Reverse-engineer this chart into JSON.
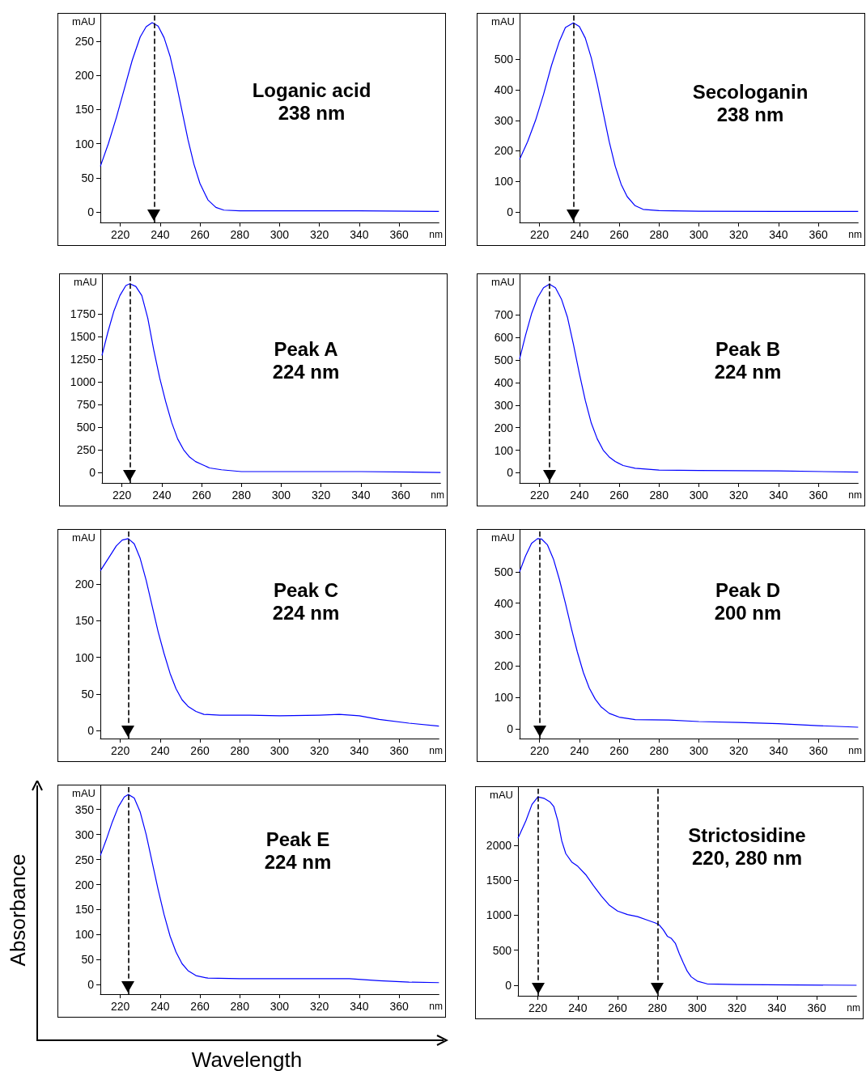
{
  "chart_data": [
    {
      "type": "line",
      "title": "Loganic acid",
      "subtitle": "238 nm",
      "xlabel": "nm",
      "ylabel": "mAU",
      "xlim": [
        210,
        380
      ],
      "xticks": [
        220,
        240,
        260,
        280,
        300,
        320,
        340,
        360
      ],
      "ylim": [
        -15,
        290
      ],
      "yticks": [
        0,
        50,
        100,
        150,
        200,
        250
      ],
      "marker": "none",
      "series": [
        {
          "color": "#0000ff",
          "x": [
            210,
            214,
            218,
            222,
            226,
            230,
            233,
            236,
            239,
            242,
            245,
            248,
            251,
            254,
            257,
            260,
            264,
            268,
            272,
            280,
            300,
            340,
            380
          ],
          "values": [
            67,
            100,
            138,
            180,
            222,
            256,
            271,
            277,
            272,
            255,
            228,
            190,
            148,
            106,
            70,
            42,
            18,
            7,
            3,
            2,
            2,
            2,
            1
          ]
        }
      ],
      "ref_lines": [
        {
          "axis": "x",
          "value": 237,
          "line_style": "dashed",
          "color": "#000000"
        }
      ]
    },
    {
      "type": "line",
      "title": "Secologanin",
      "subtitle": "238 nm",
      "xlabel": "nm",
      "ylabel": "mAU",
      "xlim": [
        210,
        380
      ],
      "xticks": [
        220,
        240,
        260,
        280,
        300,
        320,
        340,
        360
      ],
      "ylim": [
        -35,
        650
      ],
      "yticks": [
        0,
        100,
        200,
        300,
        400,
        500
      ],
      "marker": "none",
      "series": [
        {
          "color": "#0000ff",
          "x": [
            210,
            214,
            218,
            222,
            226,
            230,
            233,
            237,
            240,
            243,
            246,
            249,
            252,
            255,
            258,
            261,
            264,
            268,
            272,
            280,
            300,
            340,
            380
          ],
          "values": [
            172,
            230,
            300,
            385,
            480,
            560,
            605,
            620,
            608,
            570,
            505,
            420,
            325,
            230,
            150,
            90,
            50,
            20,
            8,
            4,
            2,
            1,
            1
          ]
        }
      ],
      "ref_lines": [
        {
          "axis": "x",
          "value": 237,
          "line_style": "dashed",
          "color": "#000000"
        }
      ]
    },
    {
      "type": "line",
      "title": "Peak A",
      "subtitle": "224 nm",
      "xlabel": "nm",
      "ylabel": "mAU",
      "xlim": [
        210,
        380
      ],
      "xticks": [
        220,
        240,
        260,
        280,
        300,
        320,
        340,
        360
      ],
      "ylim": [
        -115,
        2185
      ],
      "yticks": [
        0,
        250,
        500,
        750,
        1000,
        1250,
        1500,
        1750
      ],
      "marker": "none",
      "series": [
        {
          "color": "#0000ff",
          "x": [
            210,
            213,
            216,
            219,
            222,
            224,
            227,
            230,
            233,
            236,
            239,
            242,
            245,
            248,
            251,
            254,
            257,
            260,
            264,
            270,
            280,
            300,
            340,
            380
          ],
          "values": [
            1290,
            1550,
            1780,
            1950,
            2060,
            2080,
            2050,
            1950,
            1700,
            1350,
            1040,
            780,
            550,
            370,
            250,
            170,
            120,
            90,
            50,
            30,
            10,
            10,
            10,
            0
          ]
        }
      ],
      "ref_lines": [
        {
          "axis": "x",
          "value": 224,
          "line_style": "dashed",
          "color": "#000000"
        }
      ]
    },
    {
      "type": "line",
      "title": "Peak B",
      "subtitle": "224 nm",
      "xlabel": "nm",
      "ylabel": "mAU",
      "xlim": [
        210,
        380
      ],
      "xticks": [
        220,
        240,
        260,
        280,
        300,
        320,
        340,
        360
      ],
      "ylim": [
        -45,
        880
      ],
      "yticks": [
        0,
        100,
        200,
        300,
        400,
        500,
        600,
        700
      ],
      "marker": "none",
      "series": [
        {
          "color": "#0000ff",
          "x": [
            210,
            213,
            216,
            219,
            222,
            225,
            228,
            231,
            234,
            237,
            240,
            243,
            246,
            249,
            252,
            255,
            258,
            262,
            268,
            280,
            300,
            340,
            380
          ],
          "values": [
            505,
            610,
            705,
            775,
            820,
            836,
            820,
            770,
            690,
            570,
            440,
            320,
            220,
            150,
            100,
            70,
            50,
            32,
            20,
            12,
            10,
            8,
            3
          ]
        }
      ],
      "ref_lines": [
        {
          "axis": "x",
          "value": 225,
          "line_style": "dashed",
          "color": "#000000"
        }
      ]
    },
    {
      "type": "line",
      "title": "Peak C",
      "subtitle": "224 nm",
      "xlabel": "nm",
      "ylabel": "mAU",
      "xlim": [
        210,
        380
      ],
      "xticks": [
        220,
        240,
        260,
        280,
        300,
        320,
        340,
        360
      ],
      "ylim": [
        -11,
        274
      ],
      "yticks": [
        0,
        50,
        100,
        150,
        200
      ],
      "marker": "none",
      "series": [
        {
          "color": "#0000ff",
          "x": [
            210,
            214,
            218,
            221,
            224,
            227,
            230,
            233,
            236,
            239,
            242,
            245,
            248,
            251,
            254,
            258,
            262,
            270,
            285,
            300,
            320,
            330,
            340,
            350,
            365,
            380
          ],
          "values": [
            218,
            235,
            252,
            260,
            262,
            255,
            235,
            205,
            170,
            135,
            105,
            78,
            57,
            42,
            33,
            26,
            22,
            21,
            21,
            20,
            21,
            22,
            20,
            15,
            10,
            6
          ]
        }
      ],
      "ref_lines": [
        {
          "axis": "x",
          "value": 224,
          "line_style": "dashed",
          "color": "#000000"
        }
      ]
    },
    {
      "type": "line",
      "title": "Peak D",
      "subtitle": "200 nm",
      "xlabel": "nm",
      "ylabel": "mAU",
      "xlim": [
        210,
        380
      ],
      "xticks": [
        220,
        240,
        260,
        280,
        300,
        320,
        340,
        360
      ],
      "ylim": [
        -30,
        633
      ],
      "yticks": [
        0,
        100,
        200,
        300,
        400,
        500
      ],
      "marker": "none",
      "series": [
        {
          "color": "#0000ff",
          "x": [
            210,
            213,
            216,
            219,
            221,
            224,
            227,
            230,
            233,
            236,
            239,
            242,
            245,
            248,
            251,
            255,
            260,
            268,
            285,
            300,
            320,
            340,
            360,
            380
          ],
          "values": [
            500,
            550,
            590,
            605,
            604,
            585,
            540,
            475,
            400,
            320,
            245,
            180,
            130,
            95,
            70,
            50,
            38,
            30,
            29,
            24,
            21,
            17,
            11,
            6
          ]
        }
      ],
      "ref_lines": [
        {
          "axis": "x",
          "value": 220,
          "line_style": "dashed",
          "color": "#000000"
        }
      ]
    },
    {
      "type": "line",
      "title": "Peak E",
      "subtitle": "224 nm",
      "xlabel": "nm",
      "ylabel": "mAU",
      "xlim": [
        210,
        380
      ],
      "xticks": [
        220,
        240,
        260,
        280,
        300,
        320,
        340,
        360
      ],
      "ylim": [
        -19,
        398
      ],
      "yticks": [
        0,
        50,
        100,
        150,
        200,
        250,
        300,
        350
      ],
      "marker": "none",
      "annotations": [
        "Absorbance",
        "Wavelength"
      ],
      "series": [
        {
          "color": "#0000ff",
          "x": [
            210,
            213,
            216,
            219,
            222,
            224,
            227,
            230,
            233,
            236,
            239,
            242,
            245,
            248,
            251,
            254,
            258,
            264,
            280,
            300,
            320,
            335,
            350,
            365,
            380
          ],
          "values": [
            258,
            290,
            325,
            355,
            375,
            380,
            373,
            345,
            300,
            245,
            190,
            140,
            97,
            65,
            42,
            28,
            18,
            13,
            12,
            12,
            12,
            12,
            8,
            5,
            4
          ]
        }
      ],
      "ref_lines": [
        {
          "axis": "x",
          "value": 224,
          "line_style": "dashed",
          "color": "#000000"
        }
      ]
    },
    {
      "type": "line",
      "title": "Strictosidine",
      "subtitle": "220, 280 nm",
      "xlabel": "nm",
      "ylabel": "mAU",
      "xlim": [
        210,
        380
      ],
      "xticks": [
        220,
        240,
        260,
        280,
        300,
        320,
        340,
        360
      ],
      "ylim": [
        -150,
        2830
      ],
      "yticks": [
        0,
        500,
        1000,
        1500,
        2000
      ],
      "marker": "none",
      "series": [
        {
          "color": "#0000ff",
          "x": [
            210,
            214,
            217,
            220,
            223,
            226,
            228,
            230,
            232,
            234,
            237,
            240,
            244,
            248,
            252,
            256,
            260,
            265,
            270,
            275,
            279,
            281,
            283,
            285,
            287,
            289,
            291,
            293,
            295,
            297,
            300,
            305,
            320,
            380
          ],
          "values": [
            2100,
            2350,
            2580,
            2690,
            2670,
            2620,
            2550,
            2350,
            2060,
            1880,
            1760,
            1700,
            1580,
            1420,
            1270,
            1140,
            1060,
            1010,
            980,
            930,
            890,
            860,
            790,
            700,
            670,
            600,
            450,
            320,
            200,
            120,
            60,
            20,
            10,
            0
          ]
        }
      ],
      "ref_lines": [
        {
          "axis": "x",
          "value": 220,
          "line_style": "dashed",
          "color": "#000000"
        },
        {
          "axis": "x",
          "value": 280,
          "line_style": "dashed",
          "color": "#000000"
        }
      ]
    }
  ]
}
